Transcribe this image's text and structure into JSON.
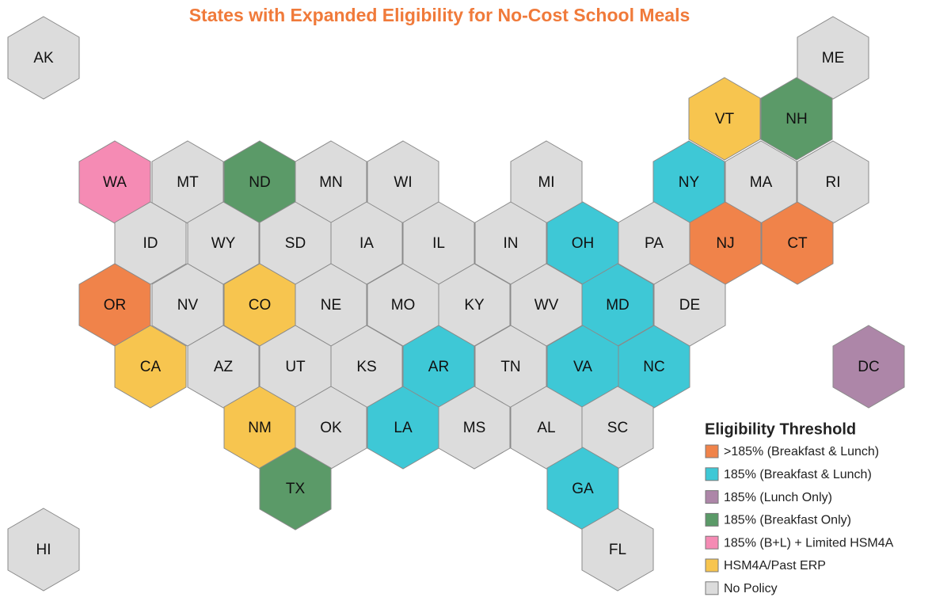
{
  "title": "States with Expanded Eligibility for No-Cost School Meals",
  "legend": {
    "title": "Eligibility Threshold",
    "items": [
      {
        "label": ">185% (Breakfast & Lunch)",
        "color": "#f0834a"
      },
      {
        "label": "185% (Breakfast & Lunch)",
        "color": "#3ec8d6"
      },
      {
        "label": "185% (Lunch Only)",
        "color": "#ad86a8"
      },
      {
        "label": "185% (Breakfast Only)",
        "color": "#5b9a68"
      },
      {
        "label": "185% (B+L) + Limited HSM4A",
        "color": "#f58bb4"
      },
      {
        "label": "HSM4A/Past ERP",
        "color": "#f7c54f"
      },
      {
        "label": "No Policy",
        "color": "#dcdcdc"
      }
    ]
  },
  "states": [
    {
      "label": "AK",
      "category": 6
    },
    {
      "label": "ME",
      "category": 6
    },
    {
      "label": "VT",
      "category": 5
    },
    {
      "label": "NH",
      "category": 3
    },
    {
      "label": "WA",
      "category": 4
    },
    {
      "label": "MT",
      "category": 6
    },
    {
      "label": "ND",
      "category": 3
    },
    {
      "label": "MN",
      "category": 6
    },
    {
      "label": "WI",
      "category": 6
    },
    {
      "label": "MI",
      "category": 6
    },
    {
      "label": "NY",
      "category": 1
    },
    {
      "label": "MA",
      "category": 6
    },
    {
      "label": "RI",
      "category": 6
    },
    {
      "label": "ID",
      "category": 6
    },
    {
      "label": "WY",
      "category": 6
    },
    {
      "label": "SD",
      "category": 6
    },
    {
      "label": "IA",
      "category": 6
    },
    {
      "label": "IL",
      "category": 6
    },
    {
      "label": "IN",
      "category": 6
    },
    {
      "label": "OH",
      "category": 1
    },
    {
      "label": "PA",
      "category": 6
    },
    {
      "label": "NJ",
      "category": 0
    },
    {
      "label": "CT",
      "category": 0
    },
    {
      "label": "OR",
      "category": 0
    },
    {
      "label": "NV",
      "category": 6
    },
    {
      "label": "CO",
      "category": 5
    },
    {
      "label": "NE",
      "category": 6
    },
    {
      "label": "MO",
      "category": 6
    },
    {
      "label": "KY",
      "category": 6
    },
    {
      "label": "WV",
      "category": 6
    },
    {
      "label": "MD",
      "category": 1
    },
    {
      "label": "DE",
      "category": 6
    },
    {
      "label": "CA",
      "category": 5
    },
    {
      "label": "AZ",
      "category": 6
    },
    {
      "label": "UT",
      "category": 6
    },
    {
      "label": "KS",
      "category": 6
    },
    {
      "label": "AR",
      "category": 1
    },
    {
      "label": "TN",
      "category": 6
    },
    {
      "label": "VA",
      "category": 1
    },
    {
      "label": "NC",
      "category": 1
    },
    {
      "label": "DC",
      "category": 2
    },
    {
      "label": "NM",
      "category": 5
    },
    {
      "label": "OK",
      "category": 6
    },
    {
      "label": "LA",
      "category": 1
    },
    {
      "label": "MS",
      "category": 6
    },
    {
      "label": "AL",
      "category": 6
    },
    {
      "label": "SC",
      "category": 6
    },
    {
      "label": "TX",
      "category": 3
    },
    {
      "label": "GA",
      "category": 1
    },
    {
      "label": "FL",
      "category": 6
    },
    {
      "label": "HI",
      "category": 6
    }
  ]
}
